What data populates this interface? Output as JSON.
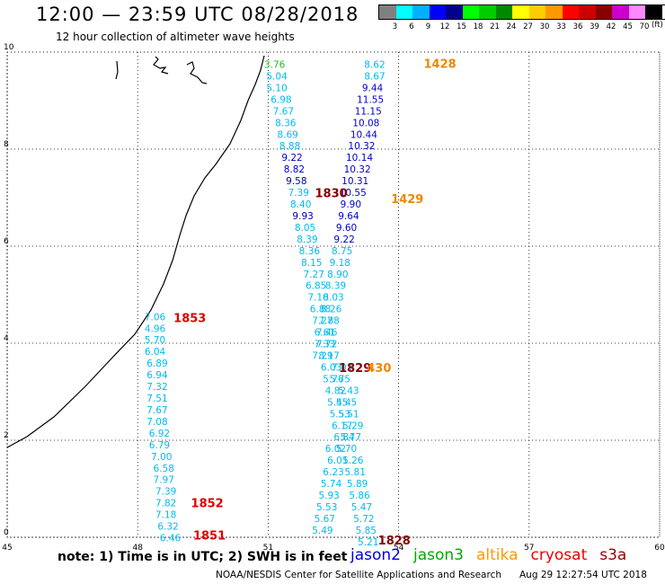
{
  "header": {
    "title": "12:00 — 23:59 UTC 08/28/2018",
    "subtitle": "12 hour collection of altimeter wave heights"
  },
  "legend": {
    "colors": [
      "#808080",
      "#00ffff",
      "#00b0ff",
      "#0000ff",
      "#00008b",
      "#00ff00",
      "#00cc00",
      "#008800",
      "#ffff00",
      "#ffcc00",
      "#ff9900",
      "#ff0000",
      "#cc0000",
      "#880000",
      "#cc00cc",
      "#ff88ff",
      "#000000"
    ],
    "labels": [
      "3",
      "6",
      "9",
      "12",
      "15",
      "18",
      "21",
      "24",
      "27",
      "30",
      "33",
      "36",
      "39",
      "42",
      "45",
      "70"
    ],
    "unit": "(ft)"
  },
  "map": {
    "lon_ticks": [
      "45",
      "48",
      "51",
      "54",
      "57",
      "60"
    ],
    "lat_ticks": [
      "0",
      "2",
      "4",
      "6",
      "8",
      "10"
    ],
    "lon_range": [
      45,
      60
    ],
    "lat_range": [
      0,
      10
    ],
    "grid": true
  },
  "tracks": [
    {
      "sat": "jason3",
      "color": "#22bb22",
      "points": [
        [
          51.15,
          9.75,
          "3.76"
        ]
      ]
    },
    {
      "sat": "jason2",
      "color": "#00bbee",
      "points": [
        [
          51.2,
          9.51,
          "5.04"
        ],
        [
          51.2,
          9.27,
          "5.10"
        ],
        [
          51.3,
          9.03,
          "6.98"
        ],
        [
          51.35,
          8.79,
          "7.67"
        ],
        [
          51.4,
          8.55,
          "8.36"
        ],
        [
          51.45,
          8.31,
          "8.69"
        ],
        [
          51.5,
          8.07,
          "8.88"
        ]
      ]
    },
    {
      "sat": "jason2",
      "color": "#0000cc",
      "points": [
        [
          51.55,
          7.83,
          "9.22"
        ],
        [
          51.6,
          7.59,
          "8.82"
        ]
      ]
    },
    {
      "sat": "jason2",
      "color": "#0000aa",
      "points": [
        [
          51.65,
          7.35,
          "9.58"
        ]
      ]
    },
    {
      "sat": "jason2",
      "color": "#00bbee",
      "points": [
        [
          51.7,
          7.11,
          "7.39"
        ],
        [
          51.75,
          6.87,
          "8.40"
        ]
      ]
    },
    {
      "sat": "jason2",
      "color": "#0000aa",
      "points": [
        [
          51.8,
          6.63,
          "9.93"
        ]
      ]
    },
    {
      "sat": "jason2",
      "color": "#00bbee",
      "points": [
        [
          51.85,
          6.39,
          "8.05"
        ],
        [
          51.9,
          6.15,
          "8.39"
        ],
        [
          51.95,
          5.91,
          "8.36"
        ],
        [
          52.0,
          5.67,
          "8.15"
        ],
        [
          52.05,
          5.43,
          "7.27"
        ],
        [
          52.1,
          5.19,
          "6.85"
        ],
        [
          52.15,
          4.95,
          "7.10"
        ],
        [
          52.2,
          4.71,
          "6.88"
        ],
        [
          52.25,
          4.47,
          "7.27"
        ],
        [
          52.3,
          4.23,
          "6.61"
        ],
        [
          52.35,
          3.99,
          "7.72"
        ],
        [
          52.4,
          3.75,
          "8.17"
        ],
        [
          52.45,
          3.51,
          "6.03"
        ],
        [
          52.5,
          3.27,
          "5.76"
        ],
        [
          52.55,
          3.03,
          "4.82"
        ],
        [
          52.6,
          2.79,
          "5.45"
        ],
        [
          52.65,
          2.55,
          "5.53"
        ],
        [
          52.7,
          2.31,
          "6.17"
        ],
        [
          52.75,
          2.07,
          "6.84"
        ],
        [
          52.55,
          1.83,
          "6.02"
        ],
        [
          52.6,
          1.59,
          "6.01"
        ],
        [
          52.5,
          1.35,
          "6.23"
        ],
        [
          52.45,
          1.11,
          "5.74"
        ],
        [
          52.4,
          0.87,
          "5.93"
        ],
        [
          52.35,
          0.63,
          "5.53"
        ],
        [
          52.3,
          0.39,
          "5.67"
        ],
        [
          52.25,
          0.15,
          "5.49"
        ]
      ]
    },
    {
      "sat": "jason2",
      "color": "#00bbee",
      "points": [
        [
          53.45,
          9.75,
          "8.62"
        ],
        [
          53.45,
          9.51,
          "8.67"
        ]
      ]
    },
    {
      "sat": "jason2",
      "color": "#0000cc",
      "points": [
        [
          53.4,
          9.27,
          "9.44"
        ],
        [
          53.35,
          9.03,
          "11.55"
        ],
        [
          53.3,
          8.79,
          "11.15"
        ],
        [
          53.25,
          8.55,
          "10.08"
        ],
        [
          53.2,
          8.31,
          "10.44"
        ],
        [
          53.15,
          8.07,
          "10.32"
        ],
        [
          53.1,
          7.83,
          "10.14"
        ],
        [
          53.05,
          7.59,
          "10.32"
        ],
        [
          53.0,
          7.35,
          "10.31"
        ],
        [
          52.95,
          7.11,
          "10.55"
        ],
        [
          52.9,
          6.87,
          "9.90"
        ],
        [
          52.85,
          6.63,
          "9.64"
        ],
        [
          52.8,
          6.39,
          "9.60"
        ],
        [
          52.75,
          6.15,
          "9.22"
        ]
      ]
    },
    {
      "sat": "jason2",
      "color": "#00bbee",
      "points": [
        [
          52.7,
          5.91,
          "8.75"
        ],
        [
          52.65,
          5.67,
          "9.18"
        ],
        [
          52.6,
          5.43,
          "8.90"
        ],
        [
          52.55,
          5.19,
          "8.39"
        ],
        [
          52.5,
          4.95,
          "8.03"
        ],
        [
          52.45,
          4.71,
          "8.26"
        ],
        [
          52.4,
          4.47,
          "7.88"
        ],
        [
          52.35,
          4.23,
          "7.46"
        ],
        [
          52.3,
          3.99,
          "7.33"
        ],
        [
          52.25,
          3.75,
          "7.29"
        ],
        [
          52.7,
          3.51,
          "7.03"
        ],
        [
          52.65,
          3.27,
          "5.75"
        ],
        [
          52.85,
          3.03,
          "5.43"
        ],
        [
          52.8,
          2.79,
          "5.45"
        ],
        [
          52.85,
          2.55,
          "5.51"
        ],
        [
          52.95,
          2.31,
          "5.29"
        ],
        [
          52.9,
          2.07,
          "5.77"
        ],
        [
          52.8,
          1.83,
          "5.70"
        ],
        [
          52.95,
          1.59,
          "5.26"
        ],
        [
          53.0,
          1.35,
          "5.81"
        ],
        [
          53.05,
          1.11,
          "5.89"
        ],
        [
          53.1,
          0.87,
          "5.86"
        ],
        [
          53.15,
          0.63,
          "5.47"
        ],
        [
          53.2,
          0.39,
          "5.72"
        ],
        [
          53.25,
          0.15,
          "5.85"
        ],
        [
          53.3,
          -0.09,
          "5.21"
        ]
      ]
    },
    {
      "sat": "jason2",
      "color": "#00bbee",
      "points": [
        [
          48.4,
          4.55,
          "7.06"
        ],
        [
          48.4,
          4.31,
          "4.96"
        ],
        [
          48.4,
          4.07,
          "5.70"
        ],
        [
          48.4,
          3.83,
          "6.04"
        ],
        [
          48.45,
          3.59,
          "6.89"
        ],
        [
          48.45,
          3.35,
          "6.94"
        ],
        [
          48.45,
          3.11,
          "7.32"
        ],
        [
          48.45,
          2.87,
          "7.51"
        ],
        [
          48.45,
          2.63,
          "7.67"
        ],
        [
          48.45,
          2.39,
          "7.08"
        ],
        [
          48.5,
          2.15,
          "6.92"
        ],
        [
          48.5,
          1.91,
          "6.79"
        ],
        [
          48.55,
          1.67,
          "7.00"
        ],
        [
          48.6,
          1.43,
          "6.58"
        ],
        [
          48.6,
          1.19,
          "7.97"
        ],
        [
          48.65,
          0.95,
          "7.39"
        ],
        [
          48.65,
          0.71,
          "7.82"
        ],
        [
          48.65,
          0.47,
          "7.18"
        ],
        [
          48.7,
          0.23,
          "6.32"
        ],
        [
          48.75,
          -0.01,
          "6.46"
        ]
      ]
    }
  ],
  "time_labels": [
    {
      "text": "1428",
      "lon": 54.95,
      "lat": 9.77,
      "color": "#ee8800"
    },
    {
      "text": "1830",
      "lon": 52.45,
      "lat": 7.1,
      "color": "#880000"
    },
    {
      "text": "1429",
      "lon": 54.2,
      "lat": 6.98,
      "color": "#ee8800"
    },
    {
      "text": "1853",
      "lon": 49.2,
      "lat": 4.53,
      "color": "#dd0000"
    },
    {
      "text": "1829",
      "lon": 53.0,
      "lat": 3.5,
      "color": "#880000"
    },
    {
      "text": "430",
      "lon": 53.55,
      "lat": 3.5,
      "color": "#ee8800"
    },
    {
      "text": "1852",
      "lon": 49.6,
      "lat": 0.71,
      "color": "#dd0000"
    },
    {
      "text": "1851",
      "lon": 49.65,
      "lat": 0.05,
      "color": "#dd0000"
    },
    {
      "text": "1828",
      "lon": 53.9,
      "lat": -0.06,
      "color": "#880000"
    }
  ],
  "footer": {
    "note": "note: 1) Time is in UTC; 2) SWH is in feet",
    "satellites": [
      {
        "name": "jason2",
        "color": "#0000dd"
      },
      {
        "name": "jason3",
        "color": "#00aa00"
      },
      {
        "name": "altika",
        "color": "#ff9900"
      },
      {
        "name": "cryosat",
        "color": "#ee0000"
      },
      {
        "name": "s3a",
        "color": "#990000"
      }
    ],
    "credit": "NOAA/NESDIS Center for Satellite Applications and Research",
    "stamp": "Aug 29 12:27:54 UTC 2018"
  }
}
